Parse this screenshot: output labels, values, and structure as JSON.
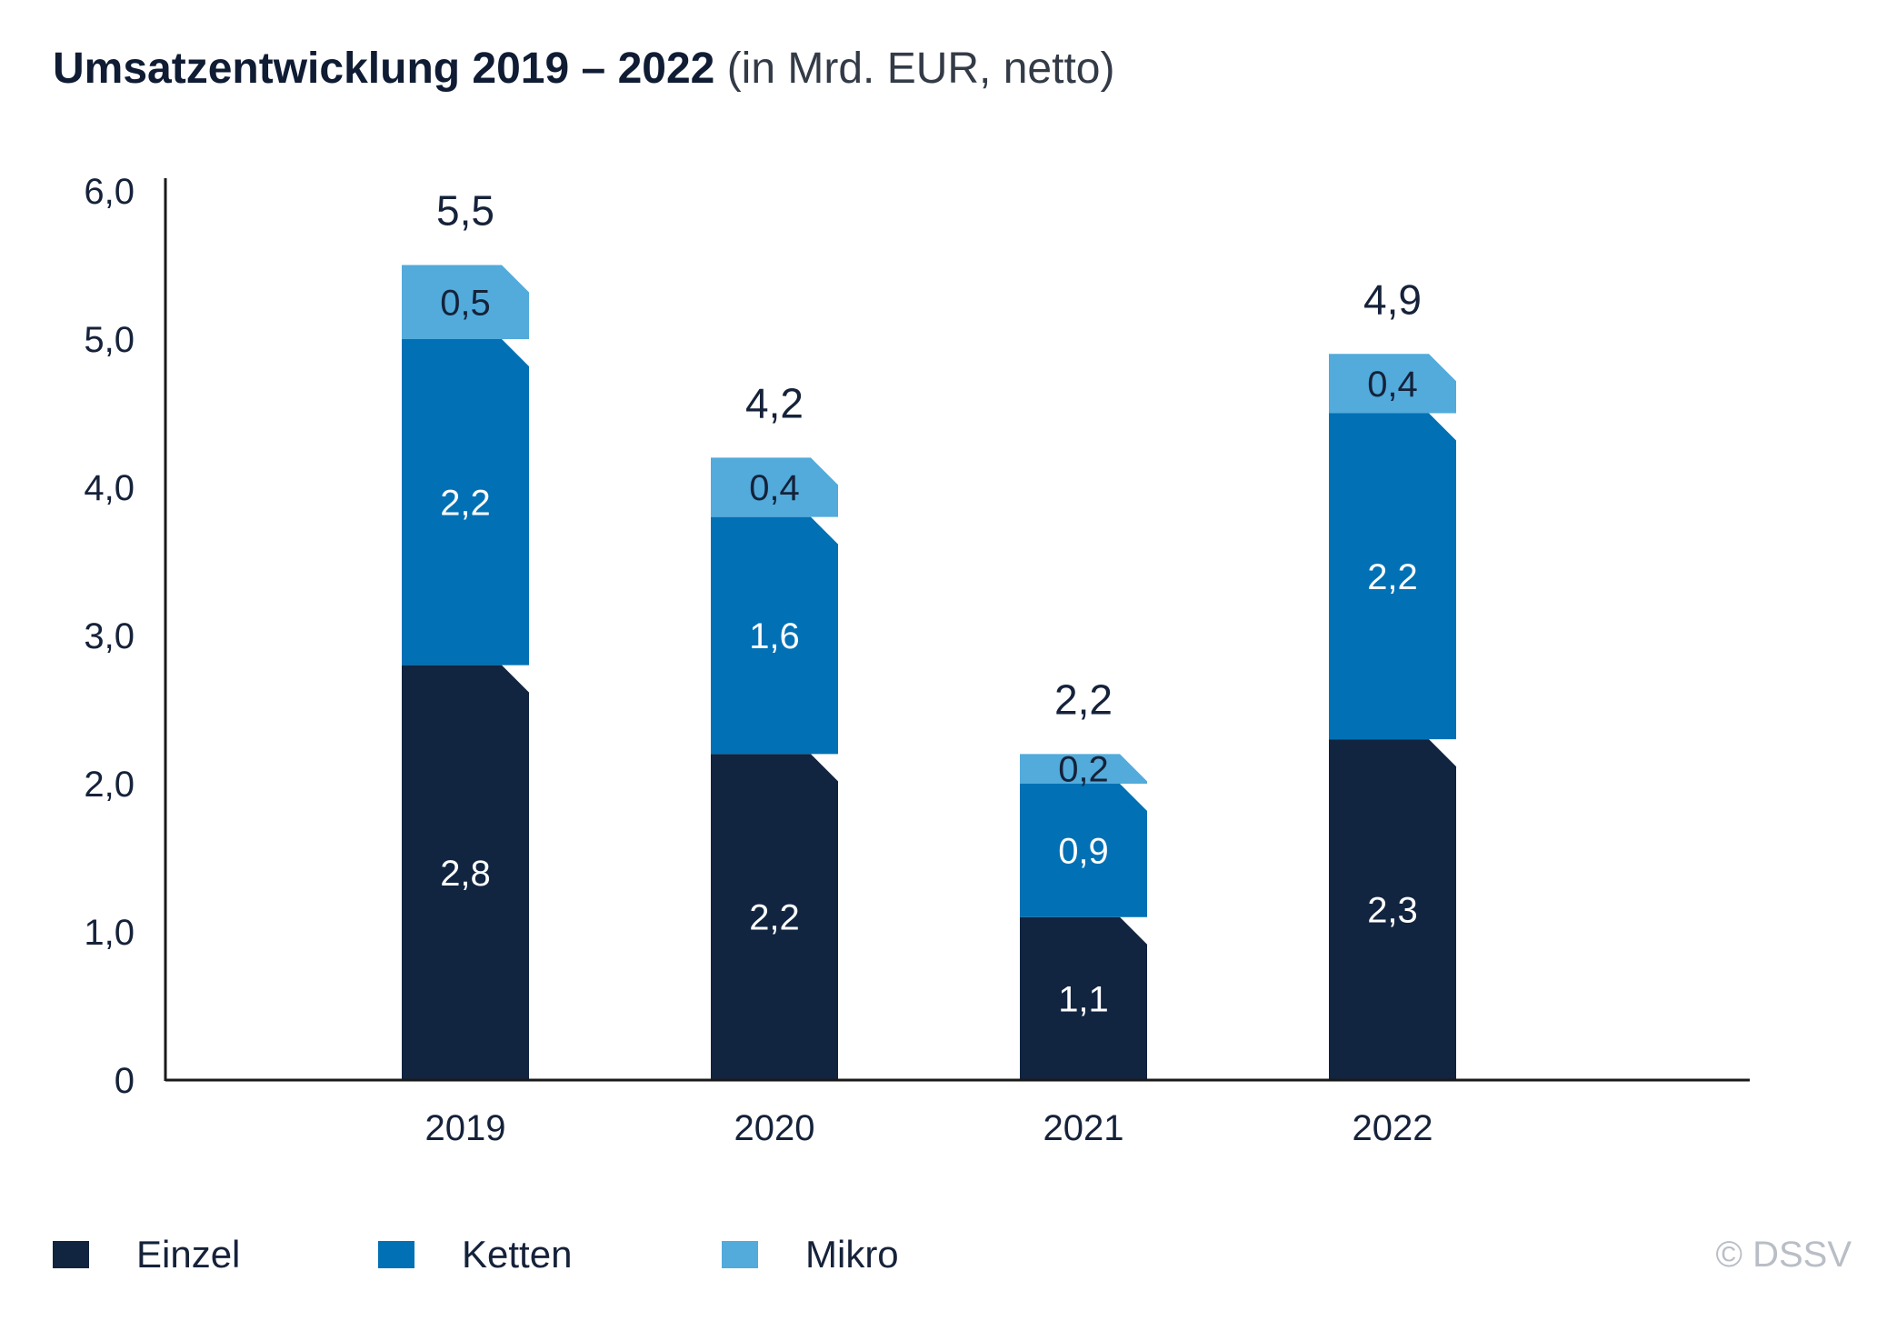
{
  "title": {
    "bold": "Umsatzentwicklung 2019 – 2022",
    "light": "(in Mrd. EUR, netto)"
  },
  "chart_data": {
    "type": "bar",
    "stacked": true,
    "categories": [
      "2019",
      "2020",
      "2021",
      "2022"
    ],
    "series": [
      {
        "name": "Einzel",
        "values": [
          2.8,
          2.2,
          1.1,
          2.3
        ],
        "color": "#112440"
      },
      {
        "name": "Ketten",
        "values": [
          2.2,
          1.6,
          0.9,
          2.2
        ],
        "color": "#0170b4"
      },
      {
        "name": "Mikro",
        "values": [
          0.5,
          0.4,
          0.2,
          0.4
        ],
        "color": "#52abdb"
      }
    ],
    "segment_labels": [
      [
        "2,8",
        "2,2",
        "0,5"
      ],
      [
        "2,2",
        "1,6",
        "0,4"
      ],
      [
        "1,1",
        "0,9",
        "0,2"
      ],
      [
        "2,3",
        "2,2",
        "0,4"
      ]
    ],
    "totals": [
      5.5,
      4.2,
      2.2,
      4.9
    ],
    "total_labels": [
      "5,5",
      "4,2",
      "2,2",
      "4,9"
    ],
    "yticks": [
      0,
      1,
      2,
      3,
      4,
      5,
      6
    ],
    "ytick_labels": [
      "0",
      "1,0",
      "2,0",
      "3,0",
      "4,0",
      "5,0",
      "6,0"
    ],
    "ylim": [
      0,
      6
    ],
    "grid": false,
    "legend_position": "bottom-left"
  },
  "legend": {
    "items": [
      {
        "label": "Einzel",
        "color": "#112440"
      },
      {
        "label": "Ketten",
        "color": "#0170b4"
      },
      {
        "label": "Mikro",
        "color": "#52abdb"
      }
    ]
  },
  "copyright": "© DSSV"
}
